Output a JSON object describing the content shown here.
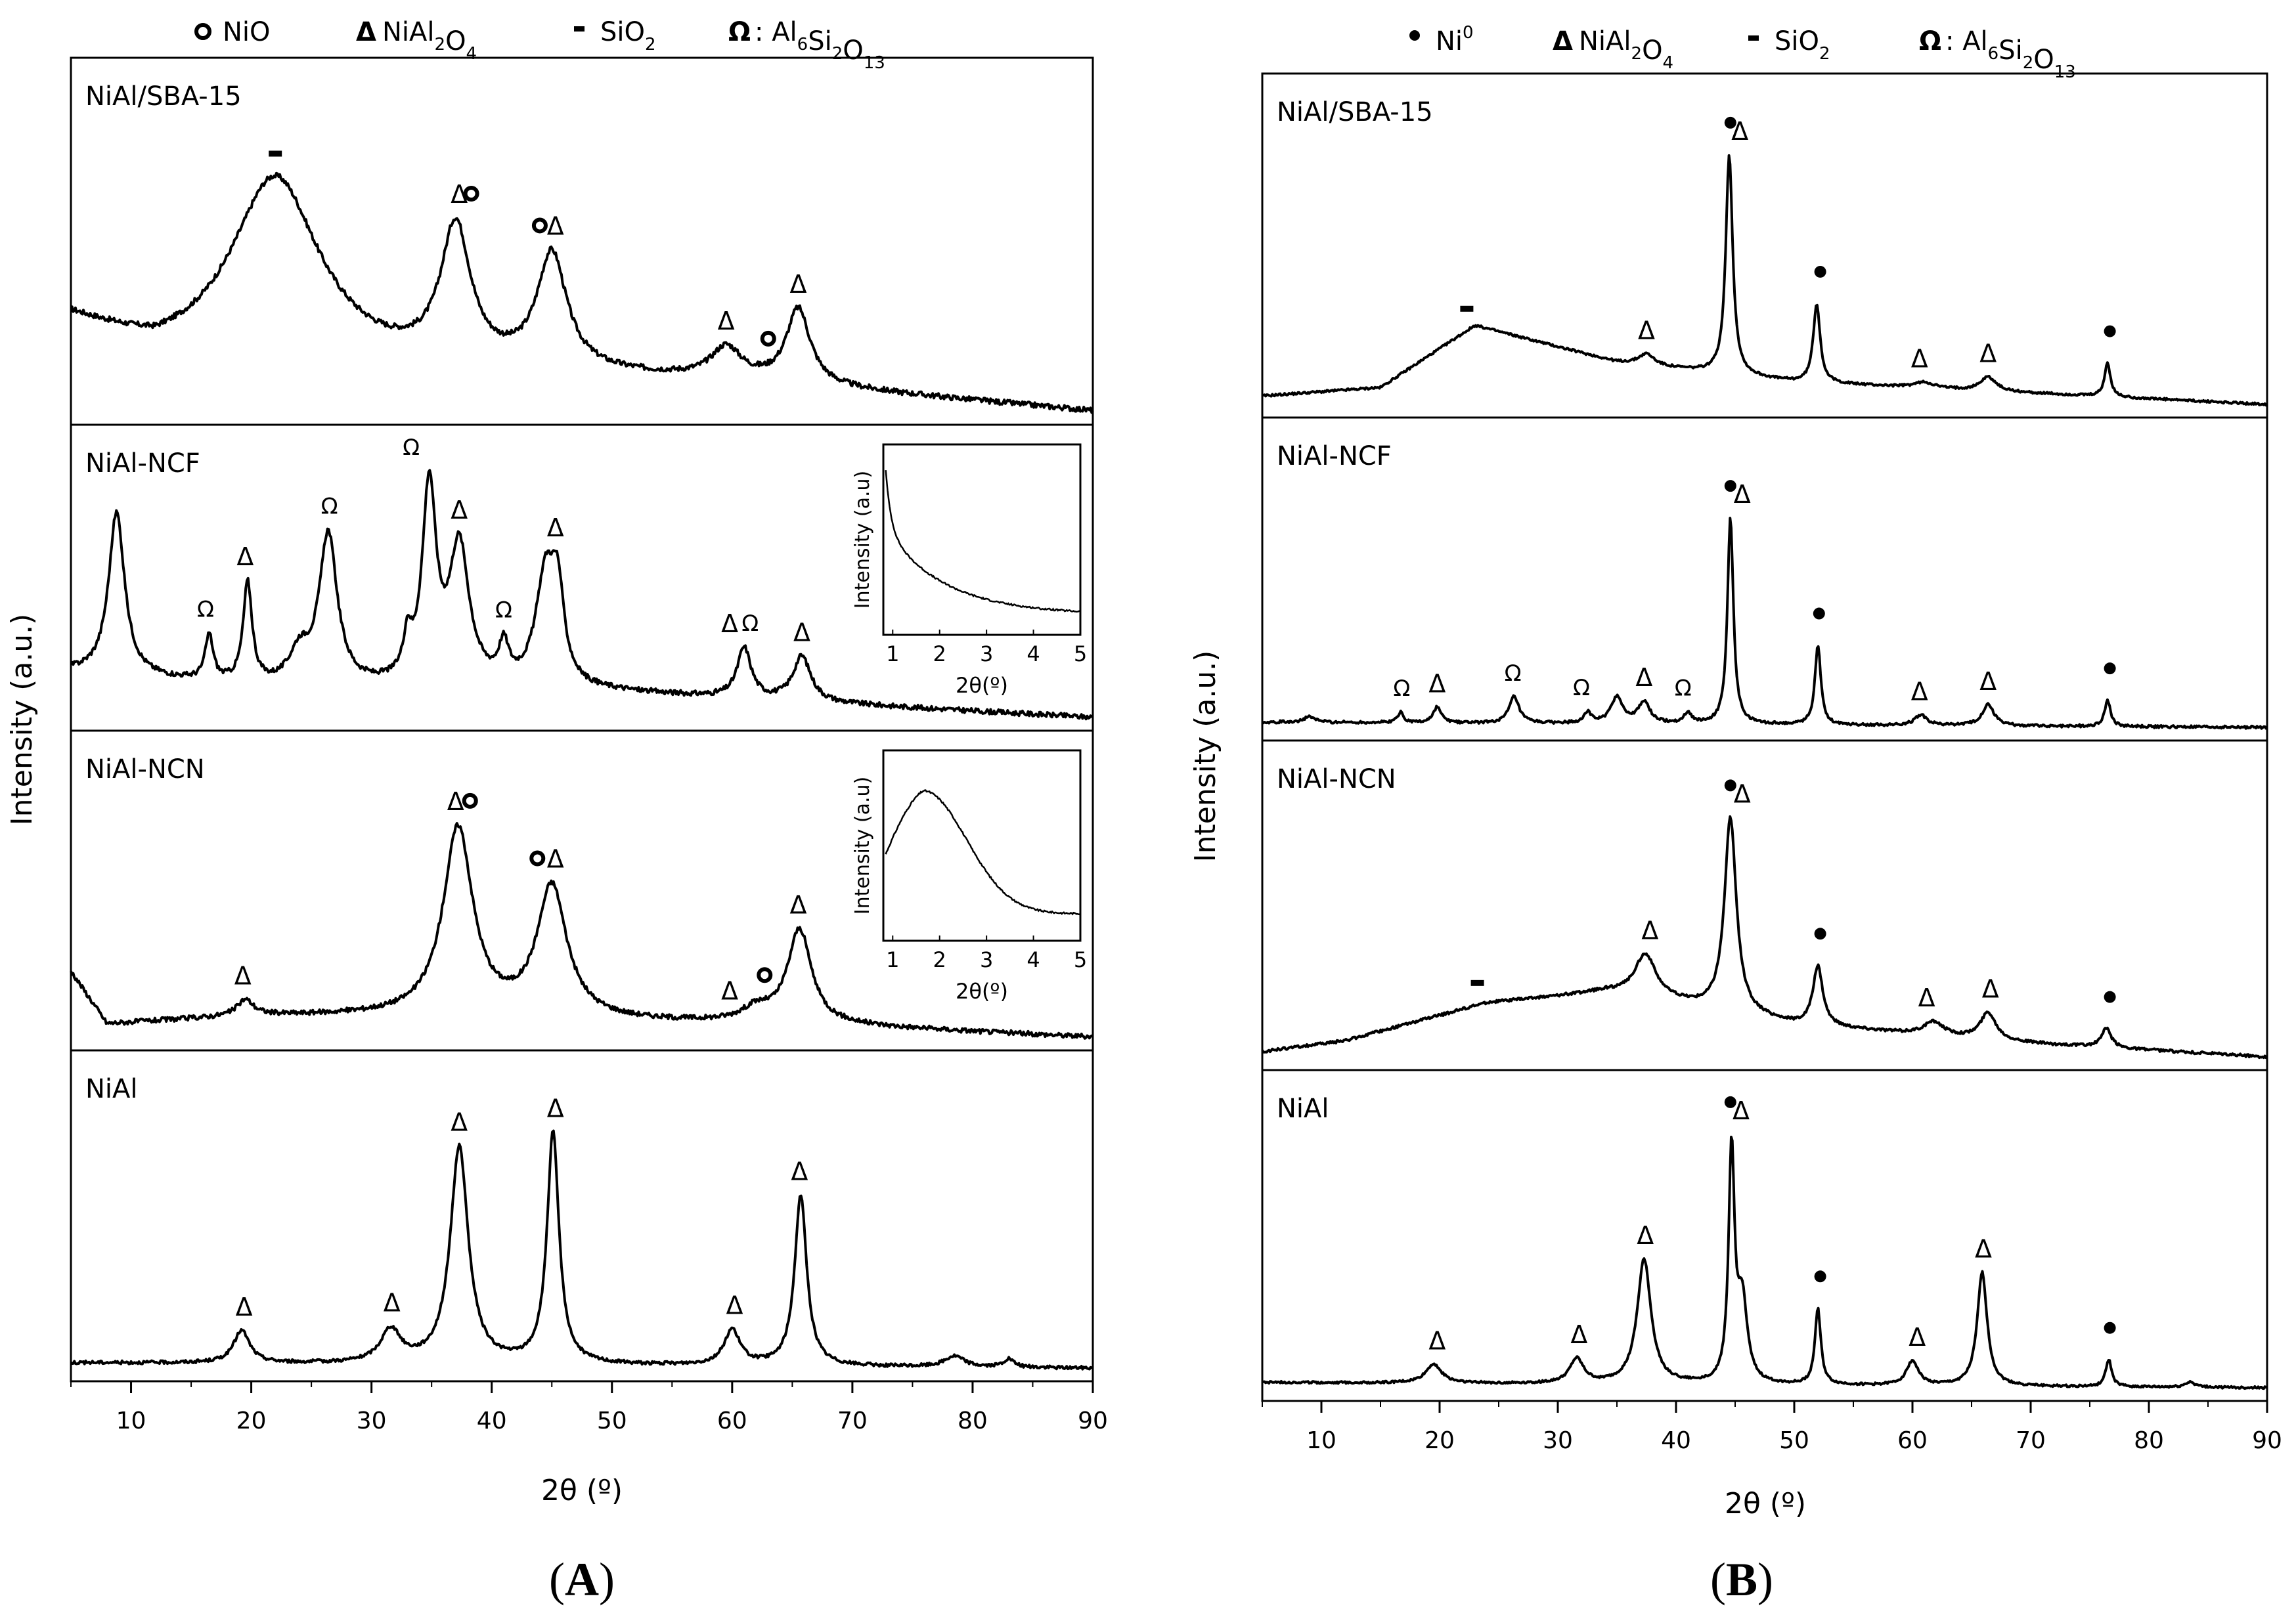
{
  "chart_data": [
    {
      "type": "line",
      "panel": "A",
      "panel_label": "A",
      "xlabel": "2θ (º)",
      "ylabel": "Intensity (a.u.)",
      "xlim": [
        5,
        90
      ],
      "xticks": [
        "10",
        "20",
        "30",
        "40",
        "50",
        "60",
        "70",
        "80",
        "90"
      ],
      "legend": [
        {
          "symbol": "o",
          "label": "NiO"
        },
        {
          "symbol": "Δ",
          "label": "NiAl",
          "sub": "2",
          "label2": "O",
          "sub2": "4"
        },
        {
          "symbol": "-",
          "label": "SiO",
          "sub": "2"
        },
        {
          "symbol": "Ω",
          "label": ": Al",
          "sub": "6",
          "label2": "Si",
          "sub2": "2",
          "label3": "O",
          "sub3": "13"
        }
      ],
      "series": [
        {
          "name": "NiAl/SBA-15",
          "baseline": [
            [
              5,
              0.3
            ],
            [
              12,
              0.18
            ],
            [
              30,
              0.14
            ],
            [
              60,
              0.1
            ],
            [
              90,
              0.0
            ]
          ],
          "peaks": [
            [
              22,
              0.62,
              4.5
            ],
            [
              37,
              0.45,
              1.5
            ],
            [
              45,
              0.38,
              1.5
            ],
            [
              59.5,
              0.1,
              1.5
            ],
            [
              65.5,
              0.25,
              1.2
            ]
          ],
          "noise": 0.018,
          "markers": [
            {
              "x": 22,
              "s": "-"
            },
            {
              "x": 37.3,
              "s": "Δ"
            },
            {
              "x": 38.3,
              "s": "o"
            },
            {
              "x": 44,
              "s": "o"
            },
            {
              "x": 45.3,
              "s": "Δ"
            },
            {
              "x": 59.5,
              "s": "Δ"
            },
            {
              "x": 63,
              "s": "o"
            },
            {
              "x": 65.5,
              "s": "Δ"
            }
          ]
        },
        {
          "name": "NiAl-NCF",
          "baseline": [
            [
              5,
              0.18
            ],
            [
              20,
              0.12
            ],
            [
              50,
              0.1
            ],
            [
              90,
              0.0
            ]
          ],
          "peaks": [
            [
              8.8,
              0.65,
              0.8
            ],
            [
              16.5,
              0.18,
              0.4
            ],
            [
              19.7,
              0.4,
              0.45
            ],
            [
              24,
              0.12,
              1
            ],
            [
              26.4,
              0.6,
              0.9
            ],
            [
              33,
              0.15,
              0.4
            ],
            [
              34.8,
              0.78,
              0.7
            ],
            [
              37.3,
              0.55,
              1.0
            ],
            [
              41,
              0.14,
              0.5
            ],
            [
              44.5,
              0.45,
              1.0
            ],
            [
              45.5,
              0.3,
              0.6
            ],
            [
              61,
              0.2,
              0.7
            ],
            [
              65.8,
              0.18,
              0.9
            ]
          ],
          "noise": 0.02,
          "markers": [
            {
              "x": 16.2,
              "s": "Ω"
            },
            {
              "x": 19.5,
              "s": "Δ"
            },
            {
              "x": 26.5,
              "s": "Ω"
            },
            {
              "x": 33.3,
              "s": "Ω"
            },
            {
              "x": 37.3,
              "s": "Δ"
            },
            {
              "x": 41,
              "s": "Ω"
            },
            {
              "x": 45.3,
              "s": "Δ"
            },
            {
              "x": 59.8,
              "s": "Δ"
            },
            {
              "x": 61.5,
              "s": "Ω"
            },
            {
              "x": 65.8,
              "s": "Δ"
            }
          ],
          "inset": {
            "xlabel": "2θ(º)",
            "ylabel": "Intensity (a.u)",
            "xticks": [
              "1",
              "2",
              "3",
              "4",
              "5"
            ]
          }
        },
        {
          "name": "NiAl-NCN",
          "baseline": [
            [
              5,
              0.25
            ],
            [
              8,
              0.05
            ],
            [
              20,
              0.08
            ],
            [
              30,
              0.08
            ],
            [
              50,
              0.06
            ],
            [
              70,
              0.04
            ],
            [
              90,
              0.0
            ]
          ],
          "peaks": [
            [
              37.2,
              0.72,
              1.5
            ],
            [
              45,
              0.5,
              1.5
            ],
            [
              19.5,
              0.06,
              0.8
            ],
            [
              65.6,
              0.36,
              1.2
            ],
            [
              62,
              0.05,
              1.5
            ]
          ],
          "noise": 0.018,
          "markers": [
            {
              "x": 37,
              "s": "Δ"
            },
            {
              "x": 38.2,
              "s": "o"
            },
            {
              "x": 43.8,
              "s": "o"
            },
            {
              "x": 45.3,
              "s": "Δ"
            },
            {
              "x": 19.3,
              "s": "Δ"
            },
            {
              "x": 59.8,
              "s": "Δ"
            },
            {
              "x": 62.7,
              "s": "o"
            },
            {
              "x": 65.5,
              "s": "Δ"
            }
          ],
          "inset": {
            "xlabel": "2θ(º)",
            "ylabel": "Intensity (a.u)",
            "xticks": [
              "1",
              "2",
              "3",
              "4",
              "5"
            ]
          }
        },
        {
          "name": "NiAl",
          "baseline": [
            [
              5,
              0.02
            ],
            [
              90,
              0.0
            ]
          ],
          "peaks": [
            [
              19.2,
              0.12,
              0.8
            ],
            [
              31.6,
              0.12,
              1.0
            ],
            [
              37.3,
              0.8,
              0.9
            ],
            [
              45.1,
              0.85,
              0.6
            ],
            [
              60,
              0.13,
              0.8
            ],
            [
              65.7,
              0.63,
              0.6
            ],
            [
              78.5,
              0.04,
              1
            ],
            [
              83,
              0.03,
              0.5
            ]
          ],
          "noise": 0.012,
          "markers": [
            {
              "x": 19.4,
              "s": "Δ"
            },
            {
              "x": 31.7,
              "s": "Δ"
            },
            {
              "x": 37.3,
              "s": "Δ"
            },
            {
              "x": 45.3,
              "s": "Δ"
            },
            {
              "x": 60.2,
              "s": "Δ"
            },
            {
              "x": 65.6,
              "s": "Δ"
            }
          ]
        }
      ]
    },
    {
      "type": "line",
      "panel": "B",
      "panel_label": "B",
      "xlabel": "2θ (º)",
      "ylabel": "Intensity (a.u.)",
      "xlim": [
        5,
        90
      ],
      "xticks": [
        "10",
        "20",
        "30",
        "40",
        "50",
        "60",
        "70",
        "80",
        "90"
      ],
      "legend": [
        {
          "symbol": "•",
          "label": "Ni",
          "sup": "0"
        },
        {
          "symbol": "Δ",
          "label": "NiAl",
          "sub": "2",
          "label2": "O",
          "sub2": "4"
        },
        {
          "symbol": "-",
          "label": "SiO",
          "sub": "2"
        },
        {
          "symbol": "Ω",
          "label": ": Al",
          "sub": "6",
          "label2": "Si",
          "sub2": "2",
          "label3": "O",
          "sub3": "13"
        }
      ],
      "series": [
        {
          "name": "NiAl/SBA-15",
          "baseline": [
            [
              5,
              0.03
            ],
            [
              15,
              0.06
            ],
            [
              23,
              0.28
            ],
            [
              35,
              0.15
            ],
            [
              50,
              0.08
            ],
            [
              90,
              0.0
            ]
          ],
          "peaks": [
            [
              37.5,
              0.04,
              0.8
            ],
            [
              44.5,
              0.78,
              0.35
            ],
            [
              51.9,
              0.28,
              0.35
            ],
            [
              61,
              0.02,
              1
            ],
            [
              66.4,
              0.05,
              0.8
            ],
            [
              76.5,
              0.12,
              0.3
            ]
          ],
          "noise": 0.008,
          "markers": [
            {
              "x": 22.3,
              "s": "-"
            },
            {
              "x": 37.5,
              "s": "Δ"
            },
            {
              "x": 44.6,
              "s": "•"
            },
            {
              "x": 45.4,
              "s": "Δ"
            },
            {
              "x": 52.2,
              "s": "•"
            },
            {
              "x": 60.6,
              "s": "Δ"
            },
            {
              "x": 66.4,
              "s": "Δ"
            },
            {
              "x": 76.7,
              "s": "•"
            }
          ]
        },
        {
          "name": "NiAl-NCF",
          "baseline": [
            [
              5,
              0.02
            ],
            [
              90,
              0.0
            ]
          ],
          "peaks": [
            [
              9,
              0.02,
              0.6
            ],
            [
              16.7,
              0.04,
              0.3
            ],
            [
              19.8,
              0.06,
              0.4
            ],
            [
              26.3,
              0.1,
              0.5
            ],
            [
              32.5,
              0.04,
              0.4
            ],
            [
              35,
              0.1,
              0.6
            ],
            [
              37.3,
              0.08,
              0.6
            ],
            [
              41,
              0.04,
              0.4
            ],
            [
              44.6,
              0.78,
              0.3
            ],
            [
              52,
              0.3,
              0.3
            ],
            [
              60.7,
              0.04,
              0.6
            ],
            [
              66.4,
              0.08,
              0.6
            ],
            [
              76.5,
              0.1,
              0.3
            ]
          ],
          "noise": 0.01,
          "markers": [
            {
              "x": 16.8,
              "s": "Ω"
            },
            {
              "x": 19.8,
              "s": "Δ"
            },
            {
              "x": 26.2,
              "s": "Ω"
            },
            {
              "x": 32,
              "s": "Ω"
            },
            {
              "x": 37.3,
              "s": "Δ"
            },
            {
              "x": 40.6,
              "s": "Ω"
            },
            {
              "x": 44.6,
              "s": "•"
            },
            {
              "x": 45.6,
              "s": "Δ"
            },
            {
              "x": 52.1,
              "s": "•"
            },
            {
              "x": 60.6,
              "s": "Δ"
            },
            {
              "x": 66.4,
              "s": "Δ"
            },
            {
              "x": 76.7,
              "s": "•"
            }
          ]
        },
        {
          "name": "NiAl-NCN",
          "baseline": [
            [
              5,
              0.02
            ],
            [
              12,
              0.06
            ],
            [
              24,
              0.2
            ],
            [
              34,
              0.24
            ],
            [
              40,
              0.2
            ],
            [
              50,
              0.12
            ],
            [
              70,
              0.05
            ],
            [
              90,
              0.0
            ]
          ],
          "peaks": [
            [
              37.4,
              0.16,
              1.1
            ],
            [
              44.6,
              0.72,
              0.6
            ],
            [
              52,
              0.22,
              0.5
            ],
            [
              61.8,
              0.05,
              1
            ],
            [
              66.4,
              0.1,
              0.8
            ],
            [
              76.4,
              0.07,
              0.5
            ]
          ],
          "noise": 0.01,
          "markers": [
            {
              "x": 23.2,
              "s": "-"
            },
            {
              "x": 37.8,
              "s": "Δ"
            },
            {
              "x": 44.6,
              "s": "•"
            },
            {
              "x": 45.6,
              "s": "Δ"
            },
            {
              "x": 52.2,
              "s": "•"
            },
            {
              "x": 61.2,
              "s": "Δ"
            },
            {
              "x": 66.6,
              "s": "Δ"
            },
            {
              "x": 76.7,
              "s": "•"
            }
          ]
        },
        {
          "name": "NiAl",
          "baseline": [
            [
              5,
              0.02
            ],
            [
              90,
              0.0
            ]
          ],
          "peaks": [
            [
              19.5,
              0.07,
              0.8
            ],
            [
              31.6,
              0.09,
              0.7
            ],
            [
              37.3,
              0.46,
              0.7
            ],
            [
              44.7,
              0.85,
              0.3
            ],
            [
              45.6,
              0.3,
              0.5
            ],
            [
              52,
              0.28,
              0.3
            ],
            [
              60,
              0.09,
              0.6
            ],
            [
              65.9,
              0.42,
              0.5
            ],
            [
              76.6,
              0.1,
              0.3
            ],
            [
              83.5,
              0.02,
              0.5
            ]
          ],
          "noise": 0.008,
          "markers": [
            {
              "x": 19.8,
              "s": "Δ"
            },
            {
              "x": 31.8,
              "s": "Δ"
            },
            {
              "x": 37.4,
              "s": "Δ"
            },
            {
              "x": 44.6,
              "s": "•"
            },
            {
              "x": 45.5,
              "s": "Δ"
            },
            {
              "x": 52.2,
              "s": "•"
            },
            {
              "x": 60.4,
              "s": "Δ"
            },
            {
              "x": 66,
              "s": "Δ"
            },
            {
              "x": 76.7,
              "s": "•"
            }
          ]
        }
      ]
    }
  ]
}
